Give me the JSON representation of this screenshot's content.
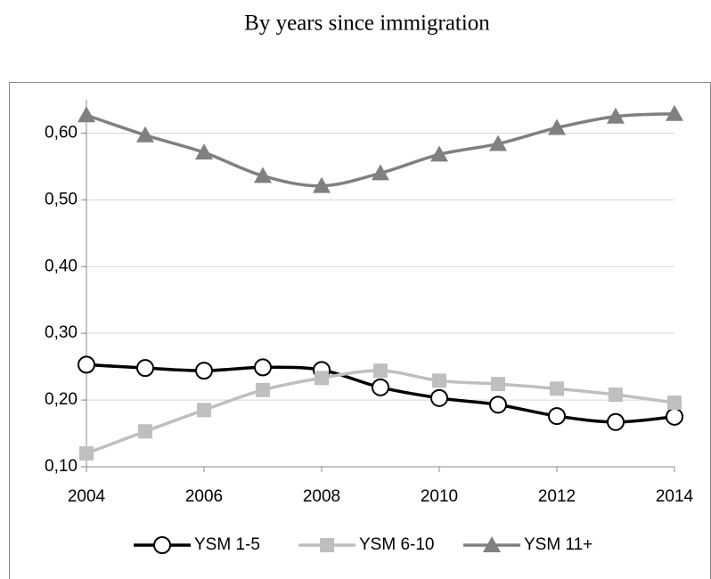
{
  "chart_data": {
    "type": "line",
    "title": "By years since immigration",
    "x": [
      2004,
      2005,
      2006,
      2007,
      2008,
      2009,
      2010,
      2011,
      2012,
      2013,
      2014
    ],
    "xlim": [
      2004,
      2014
    ],
    "xticks": [
      2004,
      2006,
      2008,
      2010,
      2012,
      2014
    ],
    "ylim": [
      0.1,
      0.65
    ],
    "yticks": [
      {
        "value": 0.1,
        "label": "0,10"
      },
      {
        "value": 0.2,
        "label": "0,20"
      },
      {
        "value": 0.3,
        "label": "0,30"
      },
      {
        "value": 0.4,
        "label": "0,40"
      },
      {
        "value": 0.5,
        "label": "0,50"
      },
      {
        "value": 0.6,
        "label": "0,60"
      }
    ],
    "grid": true,
    "legend": "bottom",
    "series": [
      {
        "name": "YSM 1-5",
        "color": "#000000",
        "marker": "circle",
        "values": [
          0.253,
          0.248,
          0.244,
          0.249,
          0.245,
          0.219,
          0.203,
          0.193,
          0.176,
          0.167,
          0.175
        ]
      },
      {
        "name": "YSM 6-10",
        "color": "#bfbfbf",
        "marker": "square",
        "values": [
          0.12,
          0.153,
          0.185,
          0.215,
          0.233,
          0.244,
          0.229,
          0.224,
          0.217,
          0.208,
          0.196
        ]
      },
      {
        "name": "YSM 11+",
        "color": "#808080",
        "marker": "triangle",
        "values": [
          0.627,
          0.597,
          0.571,
          0.536,
          0.521,
          0.54,
          0.568,
          0.584,
          0.608,
          0.625,
          0.629
        ]
      }
    ]
  }
}
